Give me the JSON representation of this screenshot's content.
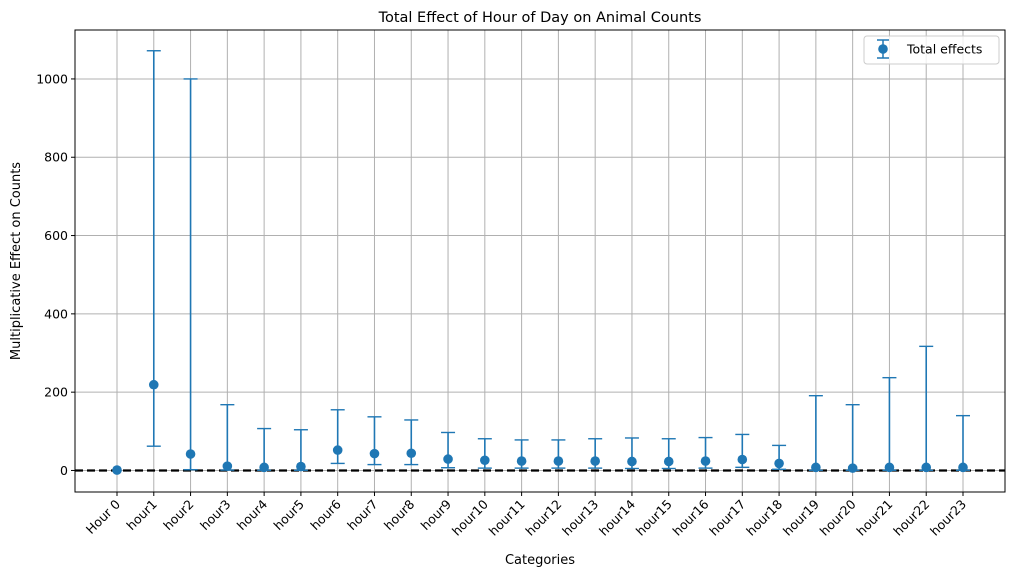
{
  "chart_data": {
    "type": "scatter",
    "title": "Total Effect of Hour of Day on Animal Counts",
    "xlabel": "Categories",
    "ylabel": "Multiplicative Effect on Counts",
    "categories": [
      "Hour 0",
      "hour1",
      "hour2",
      "hour3",
      "hour4",
      "hour5",
      "hour6",
      "hour7",
      "hour8",
      "hour9",
      "hour10",
      "hour11",
      "hour12",
      "hour13",
      "hour14",
      "hour15",
      "hour16",
      "hour17",
      "hour18",
      "hour19",
      "hour20",
      "hour21",
      "hour22",
      "hour23"
    ],
    "series": [
      {
        "name": "Total effects",
        "values": [
          1,
          219,
          42,
          11,
          8,
          10,
          52,
          43,
          44,
          29,
          26,
          24,
          24,
          24,
          23,
          23,
          24,
          28,
          18,
          8,
          6,
          8,
          8,
          8
        ],
        "lower": [
          1,
          62,
          2,
          1,
          0.5,
          0.5,
          18,
          15,
          15,
          7,
          6,
          6,
          6,
          6,
          5,
          5,
          6,
          8,
          3,
          0.5,
          0.5,
          0.5,
          0.5,
          0.5
        ],
        "upper": [
          1,
          1072,
          1000,
          168,
          107,
          104,
          155,
          137,
          129,
          97,
          81,
          78,
          78,
          81,
          83,
          81,
          84,
          92,
          64,
          191,
          168,
          237,
          317,
          140
        ]
      }
    ],
    "ylim": [
      -55,
      1125
    ],
    "yticks": [
      0,
      200,
      400,
      600,
      800,
      1000
    ],
    "grid": true,
    "legend_position": "top-right",
    "reference_line": 0,
    "colors": {
      "series": "#1f77b4",
      "grid": "#b0b0b0",
      "reference": "#000000"
    }
  }
}
